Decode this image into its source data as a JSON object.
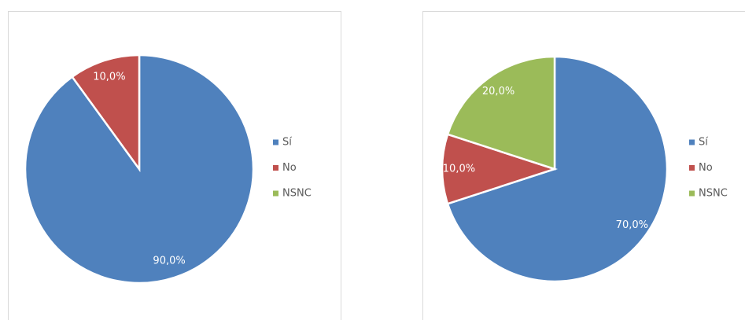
{
  "chart_data": [
    {
      "type": "pie",
      "categories": [
        "Sí",
        "No",
        "NSNC"
      ],
      "values": [
        90,
        10,
        0
      ],
      "value_labels": [
        "90,0%",
        "10,0%",
        null
      ],
      "colors": [
        "#4f81bd",
        "#c0504d",
        "#9bbb59"
      ],
      "legend": "right"
    },
    {
      "type": "pie",
      "categories": [
        "Sí",
        "No",
        "NSNC"
      ],
      "values": [
        70,
        10,
        20
      ],
      "value_labels": [
        "70,0%",
        "10,0%",
        "20,0%"
      ],
      "colors": [
        "#4f81bd",
        "#c0504d",
        "#9bbb59"
      ],
      "legend": "right"
    }
  ]
}
